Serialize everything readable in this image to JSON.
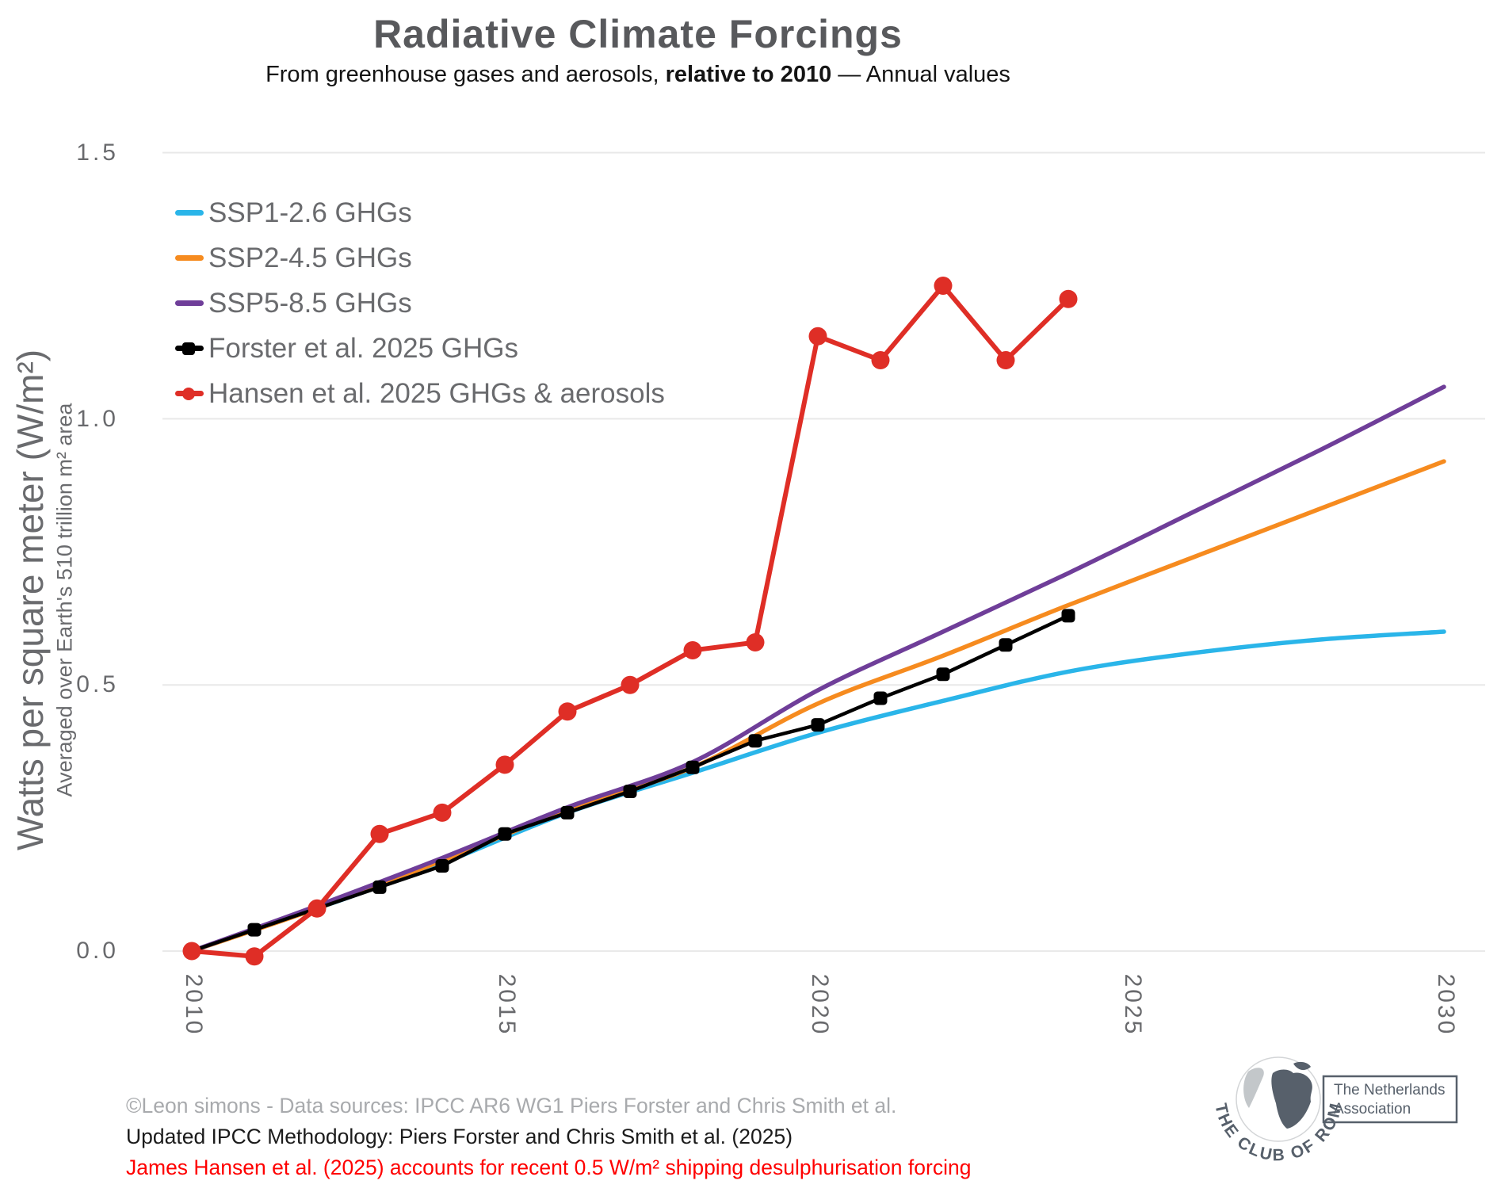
{
  "title": "Radiative Climate Forcings",
  "subtitle": {
    "prefix": "From greenhouse gases and aerosols, ",
    "bold": "relative to 2010",
    "suffix": " — Annual values"
  },
  "y_axis": {
    "label_main": "Watts per square meter (W/m²)",
    "label_sub": "Averaged over Earth's 510 trillion m² area",
    "tick_labels": [
      "1.5",
      "1.0",
      "0.5",
      "0.0"
    ]
  },
  "x_axis": {
    "tick_labels": [
      "2010",
      "2015",
      "2020",
      "2025",
      "2030"
    ]
  },
  "footer": {
    "credit": "©Leon simons - Data sources: IPCC AR6 WG1 Piers Forster and Chris Smith et al.",
    "methodology": "Updated IPCC Methodology: Piers Forster and Chris Smith et al. (2025)",
    "hansen_note": "James Hansen et al. (2025) accounts for recent 0.5 W/m² shipping desulphurisation forcing",
    "credit_color": "#a8aaad",
    "methodology_color": "#1b1b1b",
    "hansen_note_color": "#ff0000"
  },
  "logo": {
    "arc_text": "THE CLUB OF ROME",
    "box_line1": "The Netherlands",
    "box_line2": "Association",
    "color": "#57606b"
  },
  "chart_data": {
    "type": "line",
    "title": "Radiative Climate Forcings",
    "subtitle": "From greenhouse gases and aerosols, relative to 2010 — Annual values",
    "xlabel": "",
    "ylabel": "Watts per square meter (W/m²)",
    "ylabel_secondary": "Averaged over Earth's 510 trillion m² area",
    "xlim": [
      2009.5,
      2030.7
    ],
    "ylim": [
      -0.05,
      1.55
    ],
    "x_ticks": [
      2010,
      2015,
      2020,
      2025,
      2030
    ],
    "y_ticks": [
      0.0,
      0.5,
      1.0,
      1.5
    ],
    "grid": "horizontal",
    "gridline_color": "#e9e9e9",
    "legend_position": "top-left-inside",
    "series": [
      {
        "name": "SSP1-2.6 GHGs",
        "color": "#2ab5e9",
        "marker": "none",
        "smooth": true,
        "x": [
          2010,
          2012,
          2014,
          2016,
          2018,
          2020,
          2022,
          2024,
          2026,
          2028,
          2030
        ],
        "values": [
          0.0,
          0.08,
          0.165,
          0.26,
          0.335,
          0.41,
          0.47,
          0.525,
          0.56,
          0.585,
          0.6
        ]
      },
      {
        "name": "SSP2-4.5 GHGs",
        "color": "#f68b1f",
        "marker": "none",
        "smooth": true,
        "x": [
          2010,
          2012,
          2014,
          2016,
          2018,
          2020,
          2022,
          2024,
          2026,
          2028,
          2030
        ],
        "values": [
          0.0,
          0.08,
          0.17,
          0.265,
          0.345,
          0.465,
          0.555,
          0.65,
          0.74,
          0.83,
          0.92
        ]
      },
      {
        "name": "SSP5-8.5 GHGs",
        "color": "#6f3e99",
        "marker": "none",
        "smooth": true,
        "x": [
          2010,
          2012,
          2014,
          2016,
          2018,
          2020,
          2022,
          2024,
          2026,
          2028,
          2030
        ],
        "values": [
          0.0,
          0.085,
          0.175,
          0.27,
          0.355,
          0.49,
          0.6,
          0.71,
          0.825,
          0.94,
          1.06
        ]
      },
      {
        "name": "Forster et al. 2025 GHGs",
        "color": "#000000",
        "marker": "square",
        "smooth": false,
        "x": [
          2010,
          2011,
          2012,
          2013,
          2014,
          2015,
          2016,
          2017,
          2018,
          2019,
          2020,
          2021,
          2022,
          2023,
          2024
        ],
        "values": [
          0.0,
          0.04,
          0.08,
          0.12,
          0.16,
          0.22,
          0.26,
          0.3,
          0.345,
          0.395,
          0.425,
          0.475,
          0.52,
          0.575,
          0.63
        ]
      },
      {
        "name": "Hansen et al. 2025 GHGs & aerosols",
        "color": "#df2e26",
        "marker": "circle",
        "smooth": false,
        "x": [
          2010,
          2011,
          2012,
          2013,
          2014,
          2015,
          2016,
          2017,
          2018,
          2019,
          2020,
          2021,
          2022,
          2023,
          2024
        ],
        "values": [
          0.0,
          -0.01,
          0.08,
          0.22,
          0.26,
          0.35,
          0.45,
          0.5,
          0.565,
          0.58,
          1.155,
          1.11,
          1.25,
          1.11,
          1.225
        ]
      }
    ]
  }
}
